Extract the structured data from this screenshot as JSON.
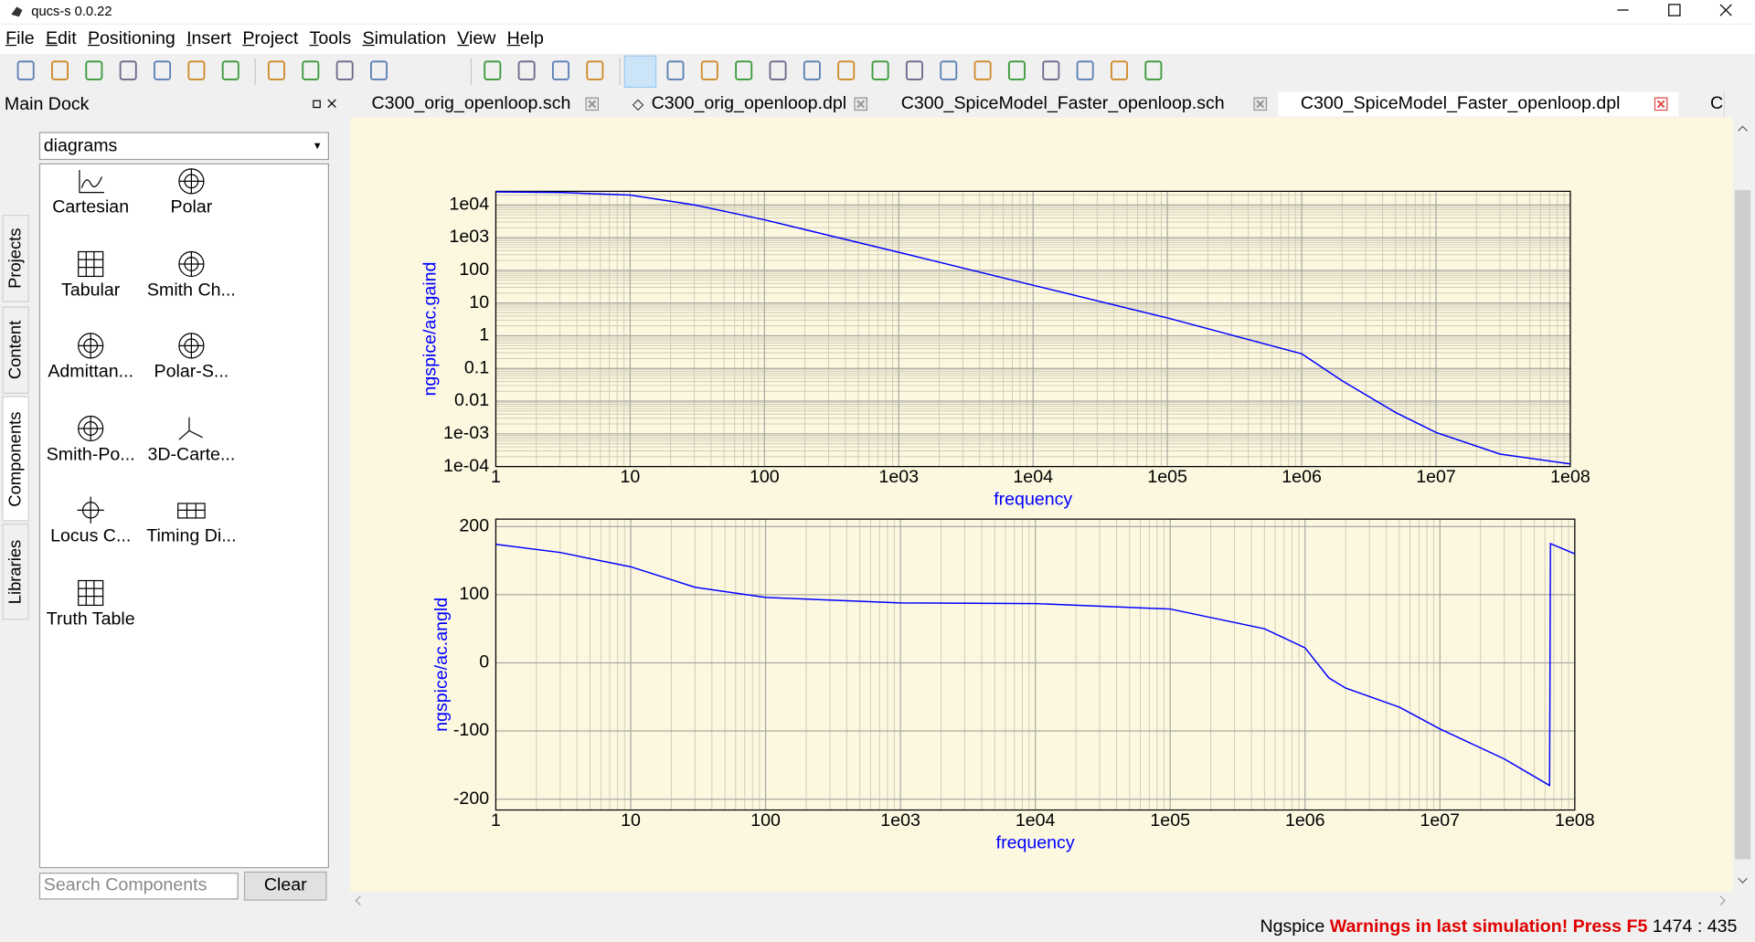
{
  "window": {
    "title": "qucs-s 0.0.22"
  },
  "menu": [
    "File",
    "Edit",
    "Positioning",
    "Insert",
    "Project",
    "Tools",
    "Simulation",
    "View",
    "Help"
  ],
  "dock": {
    "title": "Main Dock",
    "side_tabs": [
      "Projects",
      "Content",
      "Components",
      "Libraries"
    ],
    "dropdown": "diagrams",
    "items": [
      "Cartesian",
      "Polar",
      "Tabular",
      "Smith Ch...",
      "Admittan...",
      "Polar-S...",
      "Smith-Po...",
      "3D-Carte...",
      "Locus C...",
      "Timing Di...",
      "Truth Table"
    ],
    "search_placeholder": "Search Components",
    "clear_button": "Clear"
  },
  "tabs": [
    "C300_orig_openloop.sch",
    "C300_orig_openloop.dpl",
    "C300_SpiceModel_Faster_openloop.sch",
    "C300_SpiceModel_Faster_openloop.dpl",
    "C"
  ],
  "status": {
    "simulator": "Ngspice",
    "warning": "Warnings in last simulation! Press F5",
    "cursor": "1474 : 435"
  },
  "chart_data": [
    {
      "type": "line",
      "x_label": "frequency",
      "y_label": "ngspice/ac.gaind",
      "log_x": true,
      "log_y": true,
      "grid": true,
      "minor_grid": true,
      "color": "#0000ff",
      "xlim": [
        1,
        100000000
      ],
      "ylim": [
        0.0001,
        26000
      ],
      "xticks": [
        1,
        10,
        100,
        {
          "value": 1000,
          "label": "1e03"
        },
        {
          "value": 10000,
          "label": "1e04"
        },
        {
          "value": 100000,
          "label": "1e05"
        },
        {
          "value": 1000000,
          "label": "1e06"
        },
        {
          "value": 10000000,
          "label": "1e07"
        },
        {
          "value": 100000000,
          "label": "1e08"
        }
      ],
      "yticks": [
        {
          "value": 0.0001,
          "label": "1e-04"
        },
        {
          "value": 0.001,
          "label": "1e-03"
        },
        0.01,
        0.1,
        1,
        10,
        100,
        {
          "value": 1000,
          "label": "1e03"
        },
        {
          "value": 10000,
          "label": "1e04"
        }
      ],
      "x": [
        1,
        3,
        10,
        30,
        100,
        1000,
        10000,
        100000,
        1000000,
        2000000,
        5000000,
        10000000,
        30000000,
        100000000
      ],
      "values": [
        25000,
        24000,
        20000,
        10000,
        3500,
        355,
        35,
        3.5,
        0.28,
        0.042,
        0.0045,
        0.0011,
        0.00024,
        0.00012
      ]
    },
    {
      "type": "line",
      "x_label": "frequency",
      "y_label": "ngspice/ac.angld",
      "log_x": true,
      "log_y": false,
      "grid": true,
      "minor_grid": true,
      "color": "#0000ff",
      "xlim": [
        1,
        100000000
      ],
      "ylim": [
        -216,
        211
      ],
      "xticks": [
        1,
        10,
        100,
        {
          "value": 1000,
          "label": "1e03"
        },
        {
          "value": 10000,
          "label": "1e04"
        },
        {
          "value": 100000,
          "label": "1e05"
        },
        {
          "value": 1000000,
          "label": "1e06"
        },
        {
          "value": 10000000,
          "label": "1e07"
        },
        {
          "value": 100000000,
          "label": "1e08"
        }
      ],
      "yticks": [
        -200,
        -100,
        0,
        100,
        200
      ],
      "x": [
        1,
        3,
        10,
        30,
        100,
        1000,
        10000,
        100000,
        500000,
        1000000,
        1500000,
        2000000,
        5000000,
        10000000,
        30000000,
        65000000,
        66000000,
        100000000
      ],
      "values": [
        174,
        162,
        141,
        111,
        96,
        88,
        87,
        79,
        50,
        22,
        -22,
        -37,
        -65,
        -97,
        -141,
        -180,
        175,
        160
      ]
    }
  ]
}
